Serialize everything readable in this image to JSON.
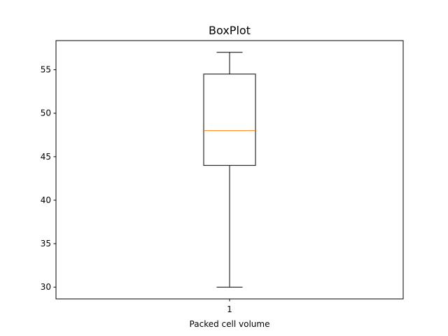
{
  "chart_data": {
    "type": "boxplot",
    "title": "BoxPlot",
    "xlabel": "Packed cell volume",
    "ylabel": "",
    "categories": [
      "1"
    ],
    "boxes": [
      {
        "whisker_low": 30,
        "q1": 44,
        "median": 48,
        "q3": 54.5,
        "whisker_high": 57
      }
    ],
    "ylim": [
      28.65,
      58.35
    ],
    "yticks": [
      30,
      35,
      40,
      45,
      50,
      55
    ],
    "grid": false,
    "colors": {
      "box": "#000000",
      "median": "#ff7f0e"
    }
  }
}
